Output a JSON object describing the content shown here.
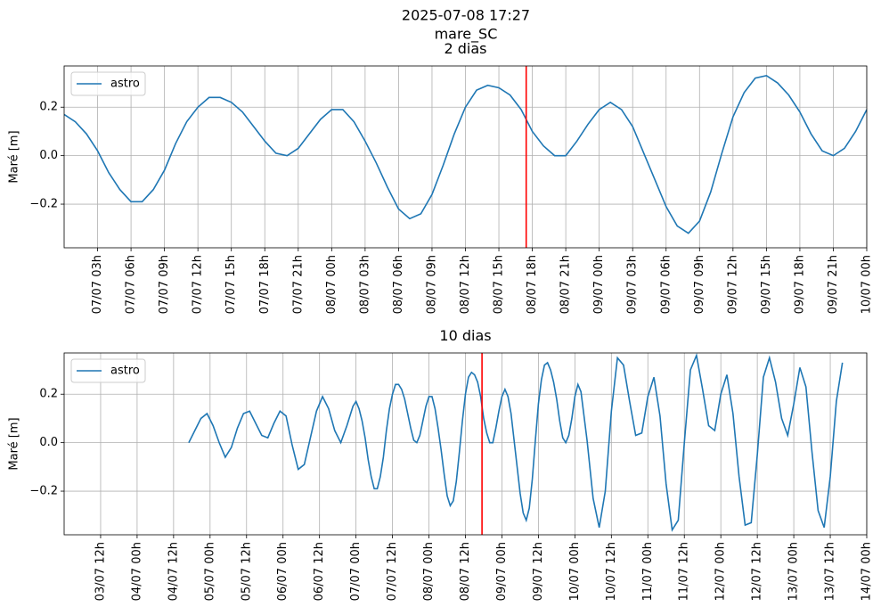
{
  "suptitle": [
    "2025-07-08 17:27",
    "mare_SC"
  ],
  "chart_data": [
    {
      "type": "line",
      "title": "2 dias",
      "ylabel": "Maré [m]",
      "x": [
        "07/07 00h",
        "07/07 01h",
        "07/07 02h",
        "07/07 03h",
        "07/07 04h",
        "07/07 05h",
        "07/07 06h",
        "07/07 07h",
        "07/07 08h",
        "07/07 09h",
        "07/07 10h",
        "07/07 11h",
        "07/07 12h",
        "07/07 13h",
        "07/07 14h",
        "07/07 15h",
        "07/07 16h",
        "07/07 17h",
        "07/07 18h",
        "07/07 19h",
        "07/07 20h",
        "07/07 21h",
        "07/07 22h",
        "07/07 23h",
        "08/07 00h",
        "08/07 01h",
        "08/07 02h",
        "08/07 03h",
        "08/07 04h",
        "08/07 05h",
        "08/07 06h",
        "08/07 07h",
        "08/07 08h",
        "08/07 09h",
        "08/07 10h",
        "08/07 11h",
        "08/07 12h",
        "08/07 13h",
        "08/07 14h",
        "08/07 15h",
        "08/07 16h",
        "08/07 17h",
        "08/07 18h",
        "08/07 19h",
        "08/07 20h",
        "08/07 21h",
        "08/07 22h",
        "08/07 23h",
        "09/07 00h",
        "09/07 01h",
        "09/07 02h",
        "09/07 03h",
        "09/07 04h",
        "09/07 05h",
        "09/07 06h",
        "09/07 07h",
        "09/07 08h",
        "09/07 09h",
        "09/07 10h",
        "09/07 11h",
        "09/07 12h",
        "09/07 13h",
        "09/07 14h",
        "09/07 15h",
        "09/07 16h",
        "09/07 17h",
        "09/07 18h",
        "09/07 19h",
        "09/07 20h",
        "09/07 21h",
        "09/07 22h",
        "09/07 23h",
        "10/07 00h"
      ],
      "series": [
        {
          "name": "astro",
          "color": "#1f77b4",
          "values": [
            0.17,
            0.14,
            0.09,
            0.02,
            -0.07,
            -0.14,
            -0.19,
            -0.19,
            -0.14,
            -0.06,
            0.05,
            0.14,
            0.2,
            0.24,
            0.24,
            0.22,
            0.18,
            0.12,
            0.06,
            0.01,
            0.0,
            0.03,
            0.09,
            0.15,
            0.19,
            0.19,
            0.14,
            0.06,
            -0.03,
            -0.13,
            -0.22,
            -0.26,
            -0.24,
            -0.16,
            -0.04,
            0.09,
            0.2,
            0.27,
            0.29,
            0.28,
            0.25,
            0.19,
            0.1,
            0.04,
            0.0,
            0.0,
            0.06,
            0.13,
            0.19,
            0.22,
            0.19,
            0.12,
            0.01,
            -0.1,
            -0.21,
            -0.29,
            -0.32,
            -0.27,
            -0.15,
            0.01,
            0.16,
            0.26,
            0.32,
            0.33,
            0.3,
            0.25,
            0.18,
            0.09,
            0.02,
            0.0,
            0.03,
            0.1,
            0.19
          ]
        }
      ],
      "xlim": [
        "07/07 00h",
        "10/07 00h"
      ],
      "xticks": [
        "07/07 03h",
        "07/07 06h",
        "07/07 09h",
        "07/07 12h",
        "07/07 15h",
        "07/07 18h",
        "07/07 21h",
        "08/07 00h",
        "08/07 03h",
        "08/07 06h",
        "08/07 09h",
        "08/07 12h",
        "08/07 15h",
        "08/07 18h",
        "08/07 21h",
        "09/07 00h",
        "09/07 03h",
        "09/07 06h",
        "09/07 09h",
        "09/07 12h",
        "09/07 15h",
        "09/07 18h",
        "09/07 21h",
        "10/07 00h"
      ],
      "ylim": [
        -0.38,
        0.37
      ],
      "yticks": [
        {
          "value": -0.2,
          "label": "−0.2"
        },
        {
          "value": 0,
          "label": "0.0"
        },
        0.2
      ],
      "grid": true,
      "legend": "upper left",
      "now_line_color": "#ff0000"
    },
    {
      "type": "line",
      "title": "10 dias",
      "ylabel": "Maré [m]",
      "x": [
        "04/07 17h",
        "04/07 19h",
        "04/07 21h",
        "04/07 23h",
        "05/07 01h",
        "05/07 03h",
        "05/07 05h",
        "05/07 07h",
        "05/07 09h",
        "05/07 11h",
        "05/07 13h",
        "05/07 15h",
        "05/07 17h",
        "05/07 19h",
        "05/07 21h",
        "05/07 23h",
        "06/07 01h",
        "06/07 03h",
        "06/07 05h",
        "06/07 07h",
        "06/07 09h",
        "06/07 11h",
        "06/07 13h",
        "06/07 15h",
        "06/07 17h",
        "06/07 19h",
        "06/07 21h",
        "06/07 23h",
        "07/07 00h",
        "07/07 01h",
        "07/07 02h",
        "07/07 03h",
        "07/07 04h",
        "07/07 05h",
        "07/07 06h",
        "07/07 07h",
        "07/07 08h",
        "07/07 09h",
        "07/07 10h",
        "07/07 11h",
        "07/07 12h",
        "07/07 13h",
        "07/07 14h",
        "07/07 15h",
        "07/07 16h",
        "07/07 17h",
        "07/07 18h",
        "07/07 19h",
        "07/07 20h",
        "07/07 21h",
        "07/07 22h",
        "07/07 23h",
        "08/07 00h",
        "08/07 01h",
        "08/07 02h",
        "08/07 03h",
        "08/07 04h",
        "08/07 05h",
        "08/07 06h",
        "08/07 07h",
        "08/07 08h",
        "08/07 09h",
        "08/07 10h",
        "08/07 11h",
        "08/07 12h",
        "08/07 13h",
        "08/07 14h",
        "08/07 15h",
        "08/07 16h",
        "08/07 17h",
        "08/07 18h",
        "08/07 19h",
        "08/07 20h",
        "08/07 21h",
        "08/07 22h",
        "08/07 23h",
        "09/07 00h",
        "09/07 01h",
        "09/07 02h",
        "09/07 03h",
        "09/07 04h",
        "09/07 05h",
        "09/07 06h",
        "09/07 07h",
        "09/07 08h",
        "09/07 09h",
        "09/07 10h",
        "09/07 11h",
        "09/07 12h",
        "09/07 13h",
        "09/07 14h",
        "09/07 15h",
        "09/07 16h",
        "09/07 17h",
        "09/07 18h",
        "09/07 19h",
        "09/07 20h",
        "09/07 21h",
        "09/07 22h",
        "09/07 23h",
        "10/07 00h",
        "10/07 01h",
        "10/07 02h",
        "10/07 04h",
        "10/07 06h",
        "10/07 08h",
        "10/07 10h",
        "10/07 12h",
        "10/07 14h",
        "10/07 16h",
        "10/07 18h",
        "10/07 20h",
        "10/07 22h",
        "11/07 00h",
        "11/07 02h",
        "11/07 04h",
        "11/07 06h",
        "11/07 08h",
        "11/07 10h",
        "11/07 12h",
        "11/07 14h",
        "11/07 16h",
        "11/07 18h",
        "11/07 20h",
        "11/07 22h",
        "12/07 00h",
        "12/07 02h",
        "12/07 04h",
        "12/07 06h",
        "12/07 08h",
        "12/07 10h",
        "12/07 12h",
        "12/07 14h",
        "12/07 16h",
        "12/07 18h",
        "12/07 20h",
        "12/07 22h",
        "13/07 00h",
        "13/07 02h",
        "13/07 04h",
        "13/07 06h",
        "13/07 08h",
        "13/07 10h",
        "13/07 12h",
        "13/07 14h",
        "13/07 16h"
      ],
      "series": [
        {
          "name": "astro",
          "color": "#1f77b4",
          "values": [
            0.0,
            0.05,
            0.1,
            0.12,
            0.07,
            0.0,
            -0.06,
            -0.02,
            0.06,
            0.12,
            0.13,
            0.08,
            0.03,
            0.02,
            0.08,
            0.13,
            0.11,
            -0.01,
            -0.11,
            -0.09,
            0.02,
            0.13,
            0.19,
            0.14,
            0.05,
            0.0,
            0.07,
            0.15,
            0.17,
            0.14,
            0.09,
            0.02,
            -0.07,
            -0.14,
            -0.19,
            -0.19,
            -0.14,
            -0.06,
            0.05,
            0.14,
            0.2,
            0.24,
            0.24,
            0.22,
            0.18,
            0.12,
            0.06,
            0.01,
            0.0,
            0.03,
            0.09,
            0.15,
            0.19,
            0.19,
            0.14,
            0.06,
            -0.03,
            -0.13,
            -0.22,
            -0.26,
            -0.24,
            -0.16,
            -0.04,
            0.09,
            0.2,
            0.27,
            0.29,
            0.28,
            0.25,
            0.19,
            0.1,
            0.04,
            0.0,
            0.0,
            0.06,
            0.13,
            0.19,
            0.22,
            0.19,
            0.12,
            0.01,
            -0.1,
            -0.21,
            -0.29,
            -0.32,
            -0.27,
            -0.15,
            0.01,
            0.16,
            0.26,
            0.32,
            0.33,
            0.3,
            0.25,
            0.18,
            0.09,
            0.02,
            0.0,
            0.03,
            0.1,
            0.19,
            0.24,
            0.21,
            0.01,
            -0.23,
            -0.35,
            -0.2,
            0.13,
            0.35,
            0.32,
            0.17,
            0.03,
            0.04,
            0.19,
            0.27,
            0.11,
            -0.17,
            -0.36,
            -0.32,
            0.0,
            0.3,
            0.36,
            0.22,
            0.07,
            0.05,
            0.2,
            0.28,
            0.12,
            -0.14,
            -0.34,
            -0.33,
            -0.05,
            0.27,
            0.35,
            0.25,
            0.1,
            0.03,
            0.16,
            0.31,
            0.23,
            -0.04,
            -0.28,
            -0.35,
            -0.14,
            0.17,
            0.33
          ]
        }
      ],
      "xlim": [
        "03/07 00h",
        "14/07 00h"
      ],
      "xticks": [
        "03/07 12h",
        "04/07 00h",
        "04/07 12h",
        "05/07 00h",
        "05/07 12h",
        "06/07 00h",
        "06/07 12h",
        "07/07 00h",
        "07/07 12h",
        "08/07 00h",
        "08/07 12h",
        "09/07 00h",
        "09/07 12h",
        "10/07 00h",
        "10/07 12h",
        "11/07 00h",
        "11/07 12h",
        "12/07 00h",
        "12/07 12h",
        "13/07 00h",
        "13/07 12h",
        "14/07 00h"
      ],
      "ylim": [
        -0.38,
        0.37
      ],
      "yticks": [
        {
          "value": -0.2,
          "label": "−0.2"
        },
        {
          "value": 0,
          "label": "0.0"
        },
        0.2
      ],
      "grid": true,
      "legend": "upper left",
      "now_line_color": "#ff0000"
    }
  ]
}
